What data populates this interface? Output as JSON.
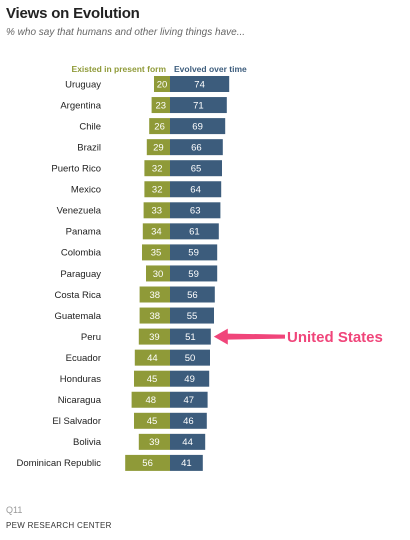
{
  "title": "Views on Evolution",
  "subtitle": "% who say that humans and other living things have...",
  "note": "Q11",
  "source": "PEW RESEARCH CENTER",
  "colors": {
    "present_form": "#8f9a38",
    "evolved": "#3c5c7c",
    "annotation": "#f0457a",
    "label_text": "#222222"
  },
  "annotation": {
    "text": "United States",
    "arrow_to": "Peru"
  },
  "chart_data": {
    "type": "bar",
    "orientation": "diverging-horizontal",
    "categories": [
      "Uruguay",
      "Argentina",
      "Chile",
      "Brazil",
      "Puerto Rico",
      "Mexico",
      "Venezuela",
      "Panama",
      "Colombia",
      "Paraguay",
      "Costa Rica",
      "Guatemala",
      "Peru",
      "Ecuador",
      "Honduras",
      "Nicaragua",
      "El Salvador",
      "Bolivia",
      "Dominican Republic"
    ],
    "series": [
      {
        "name": "Existed in present form",
        "values": [
          20,
          23,
          26,
          29,
          32,
          32,
          33,
          34,
          35,
          30,
          38,
          38,
          39,
          44,
          45,
          48,
          45,
          39,
          56
        ]
      },
      {
        "name": "Evolved over time",
        "values": [
          74,
          71,
          69,
          66,
          65,
          64,
          63,
          61,
          59,
          59,
          56,
          55,
          51,
          50,
          49,
          47,
          46,
          44,
          41
        ]
      }
    ],
    "legend": "top"
  }
}
